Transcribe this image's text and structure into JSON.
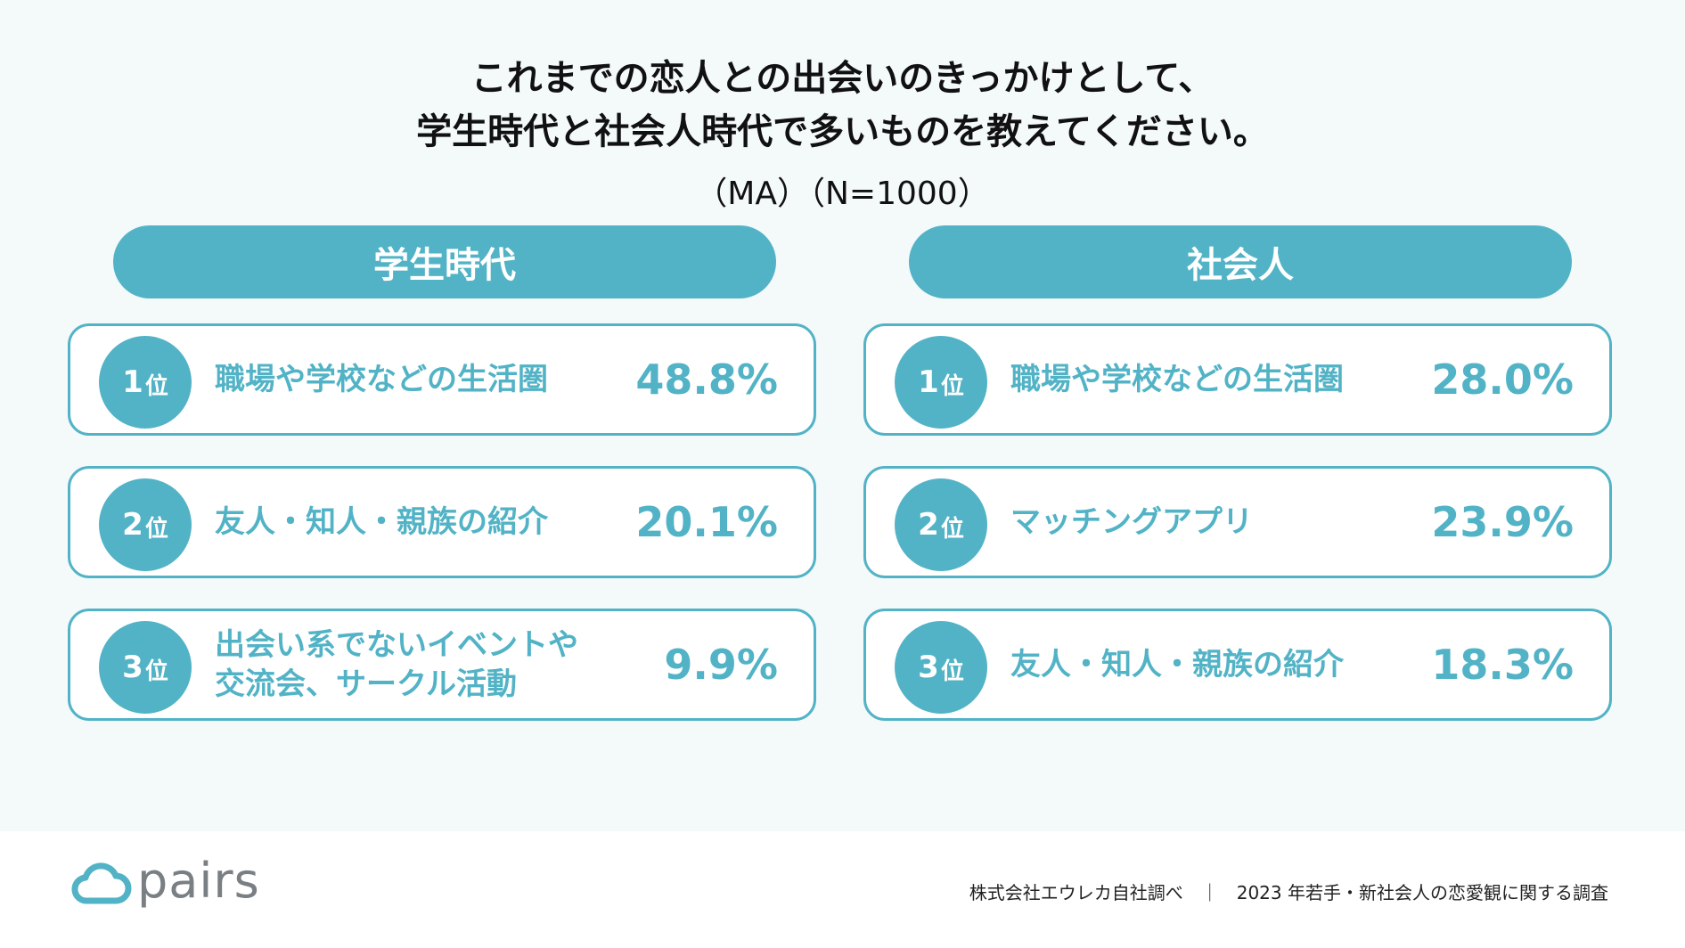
{
  "title_line1": "これまでの恋人との出会いのきっかけとして、",
  "title_line2": "学生時代と社会人時代で多いものを教えてください。",
  "subtitle": "（MA）（N=1000）",
  "accent_color": "#52b3c6",
  "chart_data": {
    "type": "table",
    "groups": [
      {
        "name": "学生時代",
        "rows": [
          {
            "rank_num": "1",
            "rank_suffix": "位",
            "label": "職場や学校などの生活圏",
            "value_text": "48.8%",
            "value": 48.8
          },
          {
            "rank_num": "2",
            "rank_suffix": "位",
            "label": "友人・知人・親族の紹介",
            "value_text": "20.1%",
            "value": 20.1
          },
          {
            "rank_num": "3",
            "rank_suffix": "位",
            "label": "出会い系でないイベントや\n交流会、サークル活動",
            "value_text": "9.9%",
            "value": 9.9
          }
        ]
      },
      {
        "name": "社会人",
        "rows": [
          {
            "rank_num": "1",
            "rank_suffix": "位",
            "label": "職場や学校などの生活圏",
            "value_text": "28.0%",
            "value": 28.0
          },
          {
            "rank_num": "2",
            "rank_suffix": "位",
            "label": "マッチングアプリ",
            "value_text": "23.9%",
            "value": 23.9
          },
          {
            "rank_num": "3",
            "rank_suffix": "位",
            "label": "友人・知人・親族の紹介",
            "value_text": "18.3%",
            "value": 18.3
          }
        ]
      }
    ]
  },
  "logo": {
    "text": "pairs",
    "icon": "cloud-icon"
  },
  "footer": "株式会社エウレカ自社調べ　｜　2023 年若手・新社会人の恋愛観に関する調査"
}
